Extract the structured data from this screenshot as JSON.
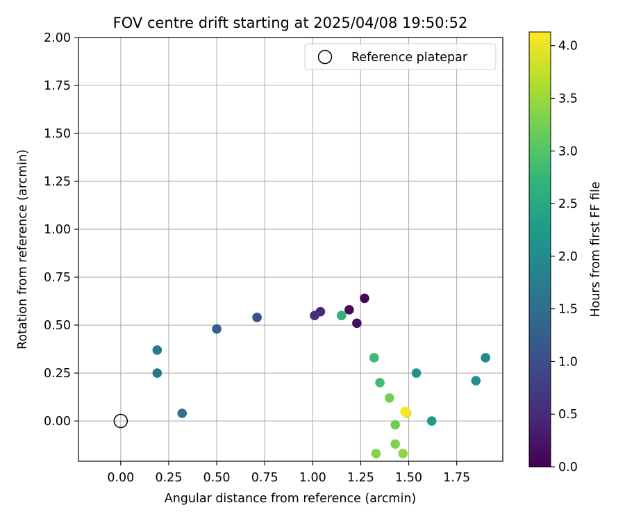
{
  "chart_data": {
    "type": "scatter",
    "title": "FOV centre drift starting at 2025/04/08 19:50:52",
    "xlabel": "Angular distance from reference (arcmin)",
    "ylabel": "Rotation from reference (arcmin)",
    "xlim": [
      -0.22,
      1.99
    ],
    "ylim": [
      -0.21,
      2.0
    ],
    "xticks": [
      "0.00",
      "0.25",
      "0.50",
      "0.75",
      "1.00",
      "1.25",
      "1.50",
      "1.75"
    ],
    "xtick_values": [
      0,
      0.25,
      0.5,
      0.75,
      1.0,
      1.25,
      1.5,
      1.75
    ],
    "yticks": [
      "0.00",
      "0.25",
      "0.50",
      "0.75",
      "1.00",
      "1.25",
      "1.50",
      "1.75",
      "2.00"
    ],
    "ytick_values": [
      0,
      0.25,
      0.5,
      0.75,
      1.0,
      1.25,
      1.5,
      1.75,
      2.0
    ],
    "grid": true,
    "legend": {
      "position": "upper-right",
      "entries": [
        "Reference platepar"
      ]
    },
    "reference": {
      "x": 0.0,
      "y": 0.0,
      "marker": "open-circle"
    },
    "colorbar": {
      "label": "Hours from first FF file",
      "colormap": "viridis",
      "range": [
        0.0,
        4.13
      ],
      "ticks": [
        "0.0",
        "0.5",
        "1.0",
        "1.5",
        "2.0",
        "2.5",
        "3.0",
        "3.5",
        "4.0"
      ],
      "tick_values": [
        0,
        0.5,
        1.0,
        1.5,
        2.0,
        2.5,
        3.0,
        3.5,
        4.0
      ]
    },
    "points": [
      {
        "x": 1.27,
        "y": 0.64,
        "hours": 0.02
      },
      {
        "x": 1.19,
        "y": 0.58,
        "hours": 0.1
      },
      {
        "x": 1.23,
        "y": 0.51,
        "hours": 0.18
      },
      {
        "x": 1.04,
        "y": 0.57,
        "hours": 0.45
      },
      {
        "x": 1.01,
        "y": 0.55,
        "hours": 0.55
      },
      {
        "x": 0.71,
        "y": 0.54,
        "hours": 1.05
      },
      {
        "x": 0.5,
        "y": 0.48,
        "hours": 1.22
      },
      {
        "x": 0.32,
        "y": 0.04,
        "hours": 1.55
      },
      {
        "x": 0.19,
        "y": 0.37,
        "hours": 1.6
      },
      {
        "x": 0.19,
        "y": 0.25,
        "hours": 1.65
      },
      {
        "x": 1.9,
        "y": 0.33,
        "hours": 1.95
      },
      {
        "x": 1.85,
        "y": 0.21,
        "hours": 2.0
      },
      {
        "x": 1.54,
        "y": 0.25,
        "hours": 2.1
      },
      {
        "x": 1.62,
        "y": 0.0,
        "hours": 2.25
      },
      {
        "x": 1.15,
        "y": 0.55,
        "hours": 2.65
      },
      {
        "x": 1.32,
        "y": 0.33,
        "hours": 2.8
      },
      {
        "x": 1.35,
        "y": 0.2,
        "hours": 2.85
      },
      {
        "x": 1.43,
        "y": -0.02,
        "hours": 3.2
      },
      {
        "x": 1.4,
        "y": 0.12,
        "hours": 3.25
      },
      {
        "x": 1.43,
        "y": -0.12,
        "hours": 3.3
      },
      {
        "x": 1.33,
        "y": -0.17,
        "hours": 3.35
      },
      {
        "x": 1.47,
        "y": -0.17,
        "hours": 3.4
      },
      {
        "x": 1.49,
        "y": 0.04,
        "hours": 3.95
      },
      {
        "x": 1.48,
        "y": 0.05,
        "hours": 4.1
      }
    ]
  }
}
